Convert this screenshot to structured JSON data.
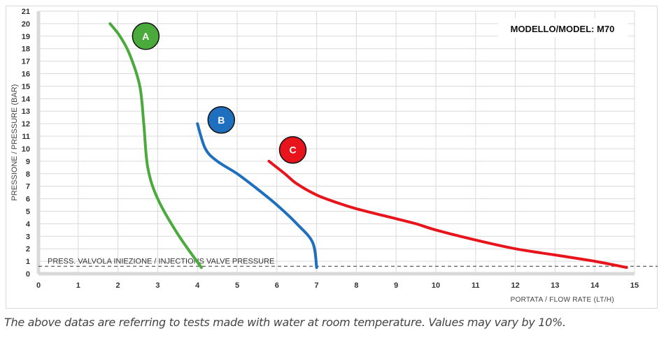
{
  "chart_data": {
    "type": "line",
    "title": "MODELLO/MODEL: M70",
    "xlabel": "PORTATA / FLOW RATE (LT/H)",
    "ylabel": "PRESSIONE / PRESSURE (BAR)",
    "xlim": [
      0,
      15
    ],
    "ylim": [
      0,
      21
    ],
    "x_ticks": [
      "0",
      "1",
      "2",
      "3",
      "4",
      "5",
      "6",
      "7",
      "8",
      "9",
      "10",
      "11",
      "12",
      "13",
      "14",
      "15"
    ],
    "y_ticks": [
      "0",
      "1",
      "2",
      "3",
      "4",
      "5",
      "6",
      "7",
      "8",
      "9",
      "10",
      "11",
      "12",
      "13",
      "14",
      "15",
      "16",
      "17",
      "18",
      "19",
      "20",
      "21"
    ],
    "grid": true,
    "series": [
      {
        "name": "A",
        "color": "#4aaa3c",
        "points": [
          [
            1.8,
            20
          ],
          [
            2.05,
            19
          ],
          [
            2.3,
            17.5
          ],
          [
            2.55,
            15
          ],
          [
            2.65,
            12
          ],
          [
            2.75,
            8.5
          ],
          [
            3,
            6
          ],
          [
            3.5,
            3.2
          ],
          [
            4.1,
            0.5
          ]
        ],
        "label_at": [
          2.7,
          19
        ]
      },
      {
        "name": "B",
        "color": "#1f6fbf",
        "points": [
          [
            4,
            12
          ],
          [
            4.2,
            10
          ],
          [
            4.5,
            9
          ],
          [
            5,
            8
          ],
          [
            5.5,
            6.8
          ],
          [
            6,
            5.5
          ],
          [
            6.5,
            4
          ],
          [
            6.9,
            2.5
          ],
          [
            7,
            0.5
          ]
        ],
        "label_at": [
          4.6,
          12.3
        ]
      },
      {
        "name": "C",
        "color": "#e8141c",
        "points": [
          [
            5.8,
            9
          ],
          [
            6.2,
            8
          ],
          [
            6.5,
            7.2
          ],
          [
            7,
            6.3
          ],
          [
            7.5,
            5.7
          ],
          [
            8,
            5.2
          ],
          [
            9,
            4.4
          ],
          [
            9.5,
            4
          ],
          [
            10,
            3.5
          ],
          [
            11,
            2.7
          ],
          [
            12,
            2
          ],
          [
            13,
            1.5
          ],
          [
            14,
            1
          ],
          [
            14.8,
            0.5
          ]
        ],
        "label_at": [
          6.4,
          9.9
        ]
      }
    ],
    "reference_line": {
      "label": "PRESS. VALVOLA INIEZIONE / INJECTIONS VALVE PRESSURE",
      "y": 0.6
    }
  },
  "caption": "The above datas are referring to tests made with water at room temperature. Values may vary by 10%."
}
